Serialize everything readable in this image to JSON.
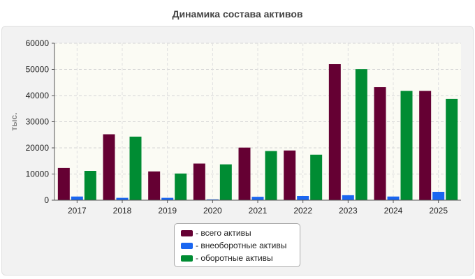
{
  "chart_data": {
    "type": "bar",
    "title": "Динамика состава активов",
    "ylabel": "тыс.",
    "xlabel": "",
    "categories": [
      "2017",
      "2018",
      "2019",
      "2020",
      "2021",
      "2022",
      "2023",
      "2024",
      "2025"
    ],
    "ylim": [
      0,
      60000
    ],
    "yticks": [
      "0",
      "10000",
      "20000",
      "30000",
      "40000",
      "50000",
      "60000"
    ],
    "grid": true,
    "legend_position": "bottom-center",
    "legend_prefix": "- ",
    "series": [
      {
        "name": "всего активы",
        "color": "#650033",
        "values": [
          12300,
          25200,
          11000,
          14000,
          20100,
          19000,
          52000,
          43200,
          41800
        ]
      },
      {
        "name": "внеоборотные активы",
        "color": "#1a66f0",
        "values": [
          1400,
          900,
          900,
          300,
          1300,
          1600,
          1900,
          1400,
          3200
        ]
      },
      {
        "name": "оборотные активы",
        "color": "#008c33",
        "values": [
          11200,
          24300,
          10200,
          13700,
          18800,
          17400,
          50100,
          41800,
          38700
        ]
      }
    ]
  }
}
